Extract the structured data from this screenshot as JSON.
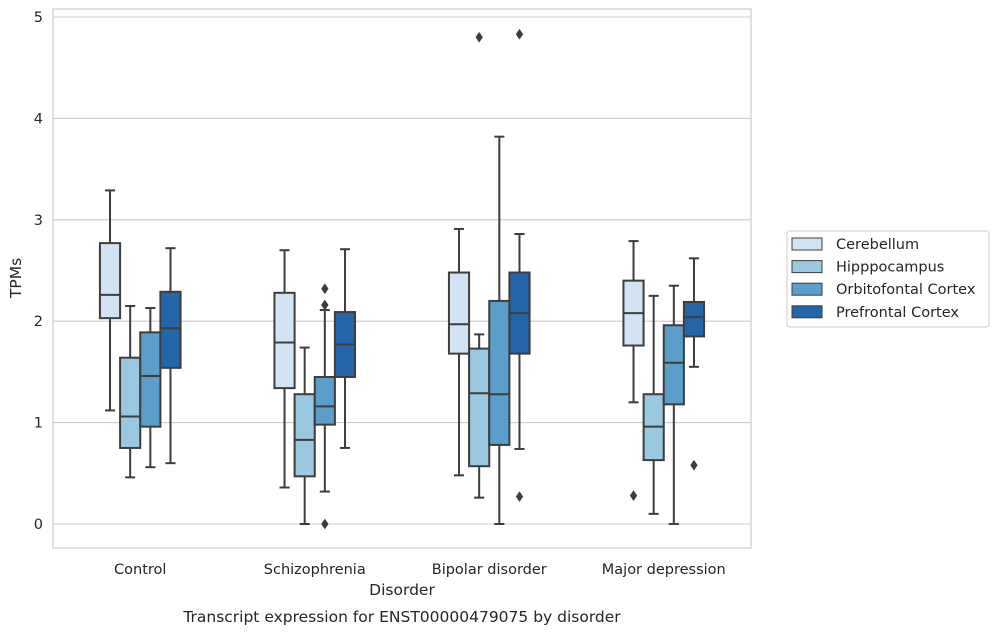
{
  "chart_data": {
    "type": "box",
    "title": "Transcript expression for ENST00000479075 by disorder",
    "xlabel": "Disorder",
    "ylabel": "TPMs",
    "ylim": [
      -0.23,
      5.08
    ],
    "yticks": [
      0,
      1,
      2,
      3,
      4,
      5
    ],
    "grid": "horizontal",
    "legend_position": "right",
    "categories": [
      "Control",
      "Schizophrenia",
      "Bipolar disorder",
      "Major depression"
    ],
    "series": [
      {
        "name": "Cerebellum",
        "color": "#d2e3f3",
        "boxes": [
          {
            "low": 1.12,
            "q1": 2.03,
            "median": 2.26,
            "q3": 2.77,
            "high": 3.29,
            "outliers": []
          },
          {
            "low": 0.36,
            "q1": 1.34,
            "median": 1.79,
            "q3": 2.28,
            "high": 2.7,
            "outliers": []
          },
          {
            "low": 0.48,
            "q1": 1.68,
            "median": 1.97,
            "q3": 2.48,
            "high": 2.91,
            "outliers": []
          },
          {
            "low": 1.2,
            "q1": 1.76,
            "median": 2.08,
            "q3": 2.4,
            "high": 2.79,
            "outliers": [
              0.28
            ]
          }
        ]
      },
      {
        "name": "Hipppocampus",
        "color": "#9ac8e0",
        "boxes": [
          {
            "low": 0.46,
            "q1": 0.75,
            "median": 1.06,
            "q3": 1.64,
            "high": 2.15,
            "outliers": []
          },
          {
            "low": 0.0,
            "q1": 0.47,
            "median": 0.83,
            "q3": 1.28,
            "high": 1.74,
            "outliers": []
          },
          {
            "low": 0.26,
            "q1": 0.57,
            "median": 1.29,
            "q3": 1.73,
            "high": 1.87,
            "outliers": [
              4.8
            ]
          },
          {
            "low": 0.1,
            "q1": 0.63,
            "median": 0.96,
            "q3": 1.28,
            "high": 2.25,
            "outliers": []
          }
        ]
      },
      {
        "name": "Orbitofontal Cortex",
        "color": "#5a9ec9",
        "boxes": [
          {
            "low": 0.56,
            "q1": 0.96,
            "median": 1.46,
            "q3": 1.89,
            "high": 2.13,
            "outliers": []
          },
          {
            "low": 0.32,
            "q1": 0.98,
            "median": 1.16,
            "q3": 1.45,
            "high": 2.11,
            "outliers": [
              2.32,
              2.16,
              0.0
            ]
          },
          {
            "low": 0.0,
            "q1": 0.78,
            "median": 1.28,
            "q3": 2.2,
            "high": 3.82,
            "outliers": []
          },
          {
            "low": 0.0,
            "q1": 1.18,
            "median": 1.59,
            "q3": 1.96,
            "high": 2.35,
            "outliers": []
          }
        ]
      },
      {
        "name": "Prefrontal Cortex",
        "color": "#2464a8",
        "boxes": [
          {
            "low": 0.6,
            "q1": 1.54,
            "median": 1.93,
            "q3": 2.29,
            "high": 2.72,
            "outliers": []
          },
          {
            "low": 0.75,
            "q1": 1.45,
            "median": 1.77,
            "q3": 2.09,
            "high": 2.71,
            "outliers": []
          },
          {
            "low": 0.74,
            "q1": 1.68,
            "median": 2.08,
            "q3": 2.48,
            "high": 2.86,
            "outliers": [
              4.83,
              0.27
            ]
          },
          {
            "low": 1.55,
            "q1": 1.85,
            "median": 2.04,
            "q3": 2.19,
            "high": 2.62,
            "outliers": [
              0.58
            ]
          }
        ]
      }
    ]
  }
}
